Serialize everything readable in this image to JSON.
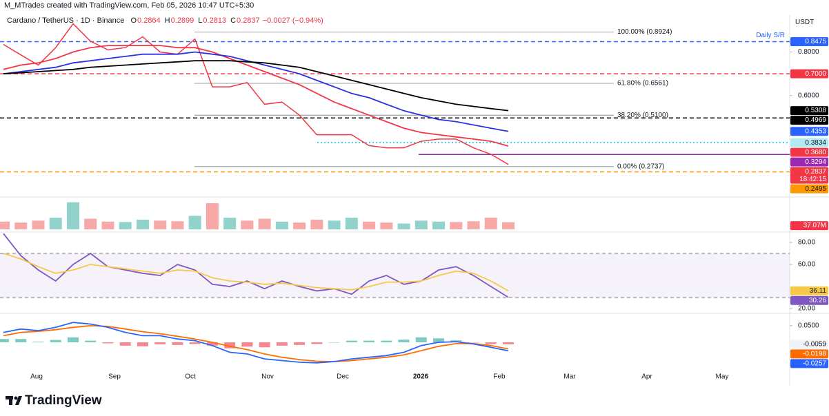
{
  "header": {
    "credit": "M_MTrades created with TradingView.com, Feb 05, 2026 10:47 UTC+5:30",
    "symbol": "Cardano / TetherUS · 1D · Binance",
    "ohlc": [
      {
        "key": "O",
        "value": 0.2864
      },
      {
        "key": "H",
        "value": 0.2899
      },
      {
        "key": "L",
        "value": 0.2813
      },
      {
        "key": "C",
        "value": 0.2837
      }
    ],
    "change": "−0.0027 (−0.94%)"
  },
  "currency": "USDT",
  "x_labels": [
    "Aug",
    "Sep",
    "Oct",
    "Nov",
    "Dec",
    "2026",
    "Feb",
    "Mar",
    "Apr",
    "May"
  ],
  "brand": "TradingView",
  "chart_data": [
    {
      "type": "line",
      "ylim": [
        0.137,
        0.96
      ],
      "yticks": [
        {
          "value": 0.6,
          "label": "0.6000"
        },
        {
          "value": 0.8,
          "label": "0.8000"
        }
      ],
      "series": [
        {
          "color": "#f23645",
          "values": [
            0.835,
            0.787,
            0.74,
            0.82,
            0.93,
            0.85,
            0.81,
            0.82,
            0.87,
            0.8,
            0.79,
            0.86,
            0.64,
            0.64,
            0.66,
            0.56,
            0.57,
            0.51,
            0.42,
            0.42,
            0.42,
            0.37,
            0.36,
            0.36,
            0.39,
            0.4,
            0.4,
            0.36,
            0.33,
            0.2837
          ]
        },
        {
          "color": "#f23645",
          "values": [
            0.72,
            0.74,
            0.75,
            0.77,
            0.8,
            0.82,
            0.83,
            0.83,
            0.83,
            0.83,
            0.82,
            0.82,
            0.8,
            0.77,
            0.74,
            0.71,
            0.68,
            0.65,
            0.61,
            0.57,
            0.54,
            0.51,
            0.48,
            0.45,
            0.43,
            0.42,
            0.41,
            0.4,
            0.39,
            0.368
          ]
        },
        {
          "color": "#2932e1",
          "values": [
            0.7,
            0.71,
            0.72,
            0.73,
            0.75,
            0.76,
            0.77,
            0.78,
            0.79,
            0.79,
            0.79,
            0.8,
            0.79,
            0.78,
            0.76,
            0.74,
            0.72,
            0.7,
            0.67,
            0.64,
            0.61,
            0.59,
            0.56,
            0.53,
            0.51,
            0.49,
            0.48,
            0.465,
            0.45,
            0.4353
          ]
        },
        {
          "color": "#000000",
          "values": [
            0.7,
            0.705,
            0.71,
            0.715,
            0.72,
            0.73,
            0.735,
            0.74,
            0.745,
            0.75,
            0.755,
            0.76,
            0.76,
            0.76,
            0.755,
            0.75,
            0.74,
            0.73,
            0.71,
            0.69,
            0.67,
            0.65,
            0.63,
            0.61,
            0.59,
            0.575,
            0.56,
            0.55,
            0.54,
            0.5308
          ]
        }
      ],
      "hlines": [
        {
          "value": 0.8475,
          "color": "#2962ff",
          "style": "dashed"
        },
        {
          "value": 0.7,
          "color": "#f23645",
          "style": "dashed"
        },
        {
          "value": 0.4969,
          "color": "#000000",
          "style": "dashed"
        },
        {
          "value": 0.3834,
          "color": "#00bcd4",
          "style": "dotted"
        },
        {
          "value": 0.3294,
          "color": "#9c27b0",
          "style": "solid"
        },
        {
          "value": 0.2495,
          "color": "#ff9800",
          "style": "dashed"
        }
      ],
      "annotation": {
        "text": "Daily S/R",
        "color": "#2962ff"
      },
      "fib": [
        {
          "value": 0.8924,
          "label": "100.00% (0.8924)"
        },
        {
          "value": 0.6561,
          "label": "61.80% (0.6561)"
        },
        {
          "value": 0.51,
          "label": "38.20% (0.5100)"
        },
        {
          "value": 0.2737,
          "label": "0.00% (0.2737)"
        }
      ],
      "badges": [
        {
          "value": 0.8475,
          "label": "0.8475",
          "color": "#2962ff",
          "text_color": "#ffffff"
        },
        {
          "value": 0.7,
          "label": "0.7000",
          "color": "#f23645",
          "text_color": "#ffffff"
        },
        {
          "value": 0.5308,
          "label": "0.5308",
          "color": "#000000",
          "text_color": "#ffffff"
        },
        {
          "value": 0.4969,
          "label": "0.4969",
          "color": "#000000",
          "text_color": "#ffffff"
        },
        {
          "value": 0.4353,
          "label": "0.4353",
          "color": "#2962ff",
          "text_color": "#ffffff"
        },
        {
          "value": 0.3834,
          "label": "0.3834",
          "color": "#b2ebf2",
          "text_color": "#131722"
        },
        {
          "value": 0.368,
          "label": "0.3680",
          "color": "#f23645",
          "text_color": "#ffffff"
        },
        {
          "value": 0.3294,
          "label": "0.3294",
          "color": "#9c27b0",
          "text_color": "#ffffff"
        },
        {
          "value": 0.2837,
          "label": "0.2837",
          "color": "#f23645",
          "text_color": "#ffffff",
          "countdown": "18:42:15"
        },
        {
          "value": 0.2495,
          "label": "0.2495",
          "color": "#ff9800",
          "text_color": "#131722"
        }
      ]
    },
    {
      "type": "bar",
      "ylim": [
        0,
        160
      ],
      "values": [
        40,
        35,
        45,
        60,
        140,
        55,
        40,
        38,
        50,
        45,
        42,
        70,
        135,
        60,
        45,
        55,
        40,
        35,
        50,
        45,
        60,
        40,
        35,
        30,
        45,
        40,
        38,
        42,
        60,
        37.07
      ],
      "colors": [
        "#f7a9a7",
        "#f7a9a7",
        "#f7a9a7",
        "#92d2cc",
        "#92d2cc",
        "#f7a9a7",
        "#f7a9a7",
        "#92d2cc",
        "#92d2cc",
        "#f7a9a7",
        "#f7a9a7",
        "#92d2cc",
        "#f7a9a7",
        "#92d2cc",
        "#f7a9a7",
        "#f7a9a7",
        "#92d2cc",
        "#f7a9a7",
        "#f7a9a7",
        "#92d2cc",
        "#92d2cc",
        "#f7a9a7",
        "#f7a9a7",
        "#92d2cc",
        "#92d2cc",
        "#92d2cc",
        "#f7a9a7",
        "#f7a9a7",
        "#f7a9a7",
        "#f7a9a7"
      ],
      "value_labels": [
        null,
        null,
        null,
        null,
        null,
        null,
        null,
        null,
        null,
        null,
        null,
        null,
        null,
        null,
        null,
        null,
        null,
        null,
        null,
        null,
        null,
        null,
        null,
        null,
        null,
        null,
        null,
        null,
        null,
        "37.07M"
      ],
      "label_color": "#f23645"
    },
    {
      "type": "line",
      "ylim": [
        17.5,
        87.5
      ],
      "yticks": [
        {
          "value": 80,
          "label": "80.00"
        },
        {
          "value": 60,
          "label": "60.00"
        },
        {
          "value": 20,
          "label": "20.00"
        }
      ],
      "band": [
        70,
        30
      ],
      "series": [
        {
          "color": "#7e57c2",
          "values": [
            88,
            68,
            55,
            45,
            60,
            70,
            58,
            55,
            52,
            50,
            60,
            55,
            42,
            40,
            45,
            38,
            45,
            40,
            36,
            38,
            33,
            45,
            50,
            42,
            45,
            55,
            58,
            50,
            40,
            30.26
          ]
        },
        {
          "color": "#f7c948",
          "values": [
            70,
            65,
            58,
            52,
            55,
            60,
            58,
            56,
            54,
            52,
            55,
            54,
            48,
            45,
            44,
            42,
            43,
            41,
            39,
            38,
            37,
            40,
            44,
            44,
            45,
            50,
            54,
            52,
            45,
            36.11
          ]
        }
      ]
    },
    {
      "type": "line",
      "ylim": [
        -0.085,
        0.083
      ],
      "yticks": [
        {
          "value": 0.05,
          "label": "0.0500"
        }
      ],
      "series": [
        {
          "type": "bar",
          "color": "#26a69a",
          "values": [
            0.01,
            0.01,
            0.002,
            0.007,
            0.015,
            0.005,
            -0.003,
            -0.01,
            -0.012,
            -0.006,
            -0.008,
            -0.005,
            -0.01,
            -0.018,
            -0.013,
            -0.015,
            -0.01,
            -0.008,
            -0.005,
            0.0,
            0.005,
            0.005,
            0.005,
            0.008,
            0.015,
            0.012,
            0.006,
            -0.001,
            -0.005,
            -0.0059
          ]
        },
        {
          "color": "#ff6d00",
          "values": [
            0.02,
            0.03,
            0.033,
            0.038,
            0.045,
            0.05,
            0.048,
            0.04,
            0.032,
            0.026,
            0.018,
            0.01,
            0.0,
            -0.012,
            -0.022,
            -0.035,
            -0.045,
            -0.052,
            -0.057,
            -0.058,
            -0.055,
            -0.05,
            -0.045,
            -0.038,
            -0.025,
            -0.012,
            -0.004,
            -0.004,
            -0.01,
            -0.0198
          ]
        },
        {
          "color": "#2962ff",
          "values": [
            0.03,
            0.04,
            0.035,
            0.045,
            0.06,
            0.055,
            0.045,
            0.03,
            0.02,
            0.02,
            0.01,
            0.005,
            -0.01,
            -0.03,
            -0.035,
            -0.05,
            -0.055,
            -0.06,
            -0.062,
            -0.058,
            -0.05,
            -0.045,
            -0.04,
            -0.03,
            -0.01,
            0.0,
            0.002,
            -0.005,
            -0.015,
            -0.0257
          ]
        }
      ],
      "neg_color": "#f23645"
    }
  ]
}
